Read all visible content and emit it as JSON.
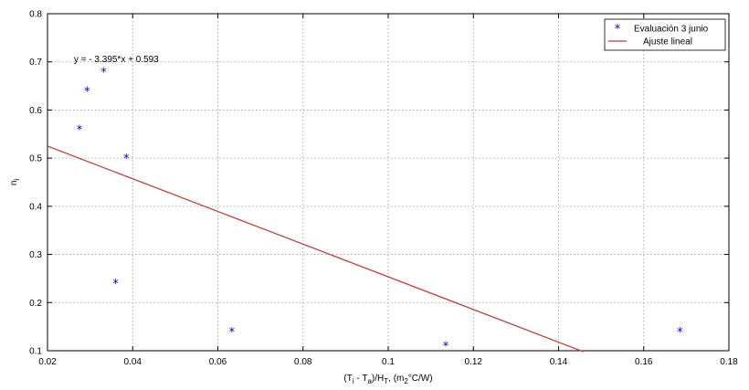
{
  "chart_data": {
    "type": "scatter",
    "xlim": [
      0.02,
      0.18
    ],
    "ylim": [
      0.1,
      0.8
    ],
    "xticks": [
      0.02,
      0.04,
      0.06,
      0.08,
      0.1,
      0.12,
      0.14,
      0.16,
      0.18
    ],
    "yticks": [
      0.1,
      0.2,
      0.3,
      0.4,
      0.5,
      0.6,
      0.7,
      0.8
    ],
    "xtick_labels": [
      "0.02",
      "0.04",
      "0.06",
      "0.08",
      "0.1",
      "0.12",
      "0.14",
      "0.16",
      "0.18"
    ],
    "ytick_labels": [
      "0.1",
      "0.2",
      "0.3",
      "0.4",
      "0.5",
      "0.6",
      "0.7",
      "0.8"
    ],
    "xlabel": {
      "parts": [
        {
          "text": "(T",
          "sub": false
        },
        {
          "text": "i",
          "sub": true
        },
        {
          "text": " - T",
          "sub": false
        },
        {
          "text": "a",
          "sub": true
        },
        {
          "text": ")/H",
          "sub": false
        },
        {
          "text": "T",
          "sub": true
        },
        {
          "text": ", (m",
          "sub": false
        },
        {
          "text": "2",
          "sub": true
        },
        {
          "text": "°C/W)",
          "sub": false
        }
      ]
    },
    "ylabel": {
      "parts": [
        {
          "text": "n",
          "sub": false
        },
        {
          "text": "i",
          "sub": true
        }
      ]
    },
    "grid": true,
    "legend_position": "top-right",
    "series": [
      {
        "name": "Evaluación 3 junio",
        "kind": "scatter",
        "marker": "*",
        "color": "#0000cc",
        "points": [
          {
            "x": 0.0275,
            "y": 0.56
          },
          {
            "x": 0.0293,
            "y": 0.64
          },
          {
            "x": 0.0332,
            "y": 0.68
          },
          {
            "x": 0.036,
            "y": 0.24
          },
          {
            "x": 0.0385,
            "y": 0.5
          },
          {
            "x": 0.0633,
            "y": 0.14
          },
          {
            "x": 0.1135,
            "y": 0.11
          },
          {
            "x": 0.1685,
            "y": 0.14
          }
        ]
      },
      {
        "name": "Ajuste lineal",
        "kind": "line",
        "color": "#cc3333",
        "slope": -3.395,
        "intercept": 0.593,
        "x_range": [
          0.02,
          0.1458
        ]
      }
    ],
    "annotations": [
      {
        "text": "y = - 3.395*x + 0.593",
        "x": 0.0262,
        "y": 0.705
      }
    ]
  }
}
